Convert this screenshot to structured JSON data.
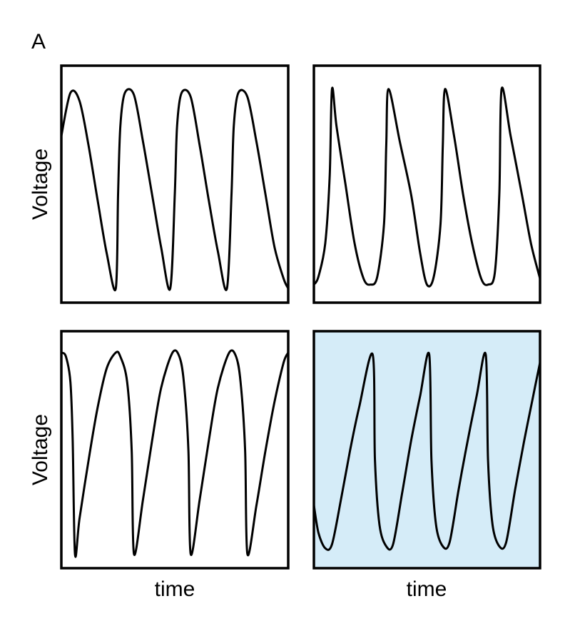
{
  "figure": {
    "panel_label": "A",
    "highlight_color": "#d5ecf8",
    "line_color": "#000000"
  },
  "chart_data": [
    {
      "type": "line",
      "row": 1,
      "col": 1,
      "ylabel": "Voltage",
      "xlabel": "",
      "waveform": "smooth rounded peak, linear fall, abrupt rise",
      "cycles": 4,
      "highlighted": false,
      "series": [
        {
          "x": [
            0.0,
            0.04,
            0.08,
            0.12,
            0.16,
            0.2,
            0.24,
            0.25,
            0.26,
            0.28,
            0.32,
            0.36,
            0.4,
            0.44,
            0.48,
            0.5,
            0.51,
            0.53,
            0.57,
            0.61,
            0.65,
            0.69,
            0.73,
            0.75,
            0.76,
            0.78,
            0.82,
            0.86,
            0.9,
            0.94,
            0.98,
            1.0
          ],
          "y": [
            0.75,
            0.97,
            0.93,
            0.7,
            0.42,
            0.15,
            -0.03,
            0.45,
            0.8,
            0.97,
            0.96,
            0.72,
            0.45,
            0.18,
            -0.03,
            0.45,
            0.8,
            0.97,
            0.95,
            0.7,
            0.42,
            0.16,
            -0.03,
            0.45,
            0.8,
            0.97,
            0.95,
            0.72,
            0.45,
            0.18,
            0.02,
            -0.03
          ]
        }
      ]
    },
    {
      "type": "line",
      "row": 1,
      "col": 2,
      "ylabel": "",
      "xlabel": "",
      "waveform": "sharp peak, linear fall, rounded trough",
      "cycles": 4,
      "highlighted": false,
      "series": [
        {
          "x": [
            0.0,
            0.02,
            0.05,
            0.07,
            0.08,
            0.1,
            0.14,
            0.18,
            0.22,
            0.25,
            0.28,
            0.31,
            0.32,
            0.33,
            0.38,
            0.43,
            0.47,
            0.5,
            0.53,
            0.56,
            0.57,
            0.58,
            0.62,
            0.66,
            0.7,
            0.74,
            0.77,
            0.8,
            0.82,
            0.83,
            0.87,
            0.92,
            0.96,
            1.0
          ],
          "y": [
            -0.01,
            0.03,
            0.2,
            0.55,
            0.99,
            0.8,
            0.5,
            0.2,
            0.02,
            -0.01,
            0.03,
            0.3,
            0.7,
            0.99,
            0.72,
            0.45,
            0.15,
            -0.01,
            0.03,
            0.3,
            0.7,
            0.99,
            0.75,
            0.45,
            0.2,
            0.02,
            -0.01,
            0.05,
            0.45,
            0.99,
            0.75,
            0.45,
            0.2,
            0.02
          ]
        }
      ]
    },
    {
      "type": "line",
      "row": 2,
      "col": 1,
      "ylabel": "Voltage",
      "xlabel": "time",
      "waveform": "rounded peak, abrupt drop, linear rise",
      "cycles": 4,
      "highlighted": false,
      "series": [
        {
          "x": [
            0.0,
            0.02,
            0.04,
            0.05,
            0.06,
            0.08,
            0.12,
            0.16,
            0.2,
            0.24,
            0.26,
            0.29,
            0.31,
            0.32,
            0.36,
            0.4,
            0.44,
            0.49,
            0.52,
            0.54,
            0.56,
            0.57,
            0.61,
            0.65,
            0.69,
            0.74,
            0.77,
            0.79,
            0.81,
            0.82,
            0.86,
            0.9,
            0.94,
            0.98,
            1.0
          ],
          "y": [
            1.0,
            0.98,
            0.85,
            0.55,
            -0.03,
            0.15,
            0.45,
            0.72,
            0.92,
            1.0,
            0.98,
            0.85,
            0.5,
            -0.03,
            0.25,
            0.55,
            0.82,
            1.0,
            0.98,
            0.85,
            0.5,
            -0.03,
            0.25,
            0.55,
            0.82,
            1.0,
            0.98,
            0.85,
            0.5,
            -0.03,
            0.22,
            0.5,
            0.75,
            0.95,
            1.0
          ]
        }
      ]
    },
    {
      "type": "line",
      "row": 2,
      "col": 2,
      "ylabel": "",
      "xlabel": "time",
      "waveform": "rounded trough, linear rise, sharp peak with abrupt drop",
      "cycles": 4,
      "highlighted": true,
      "series": [
        {
          "x": [
            0.0,
            0.02,
            0.05,
            0.08,
            0.12,
            0.16,
            0.2,
            0.26,
            0.27,
            0.29,
            0.32,
            0.35,
            0.39,
            0.43,
            0.47,
            0.51,
            0.52,
            0.54,
            0.57,
            0.6,
            0.64,
            0.68,
            0.72,
            0.76,
            0.77,
            0.79,
            0.82,
            0.85,
            0.89,
            0.93,
            0.97,
            1.0
          ],
          "y": [
            0.22,
            0.08,
            0.0,
            0.02,
            0.25,
            0.5,
            0.72,
            0.99,
            0.45,
            0.12,
            0.01,
            0.02,
            0.28,
            0.55,
            0.78,
            0.99,
            0.45,
            0.12,
            0.01,
            0.03,
            0.3,
            0.55,
            0.78,
            0.99,
            0.45,
            0.12,
            0.01,
            0.03,
            0.3,
            0.55,
            0.78,
            0.95
          ]
        }
      ]
    }
  ]
}
